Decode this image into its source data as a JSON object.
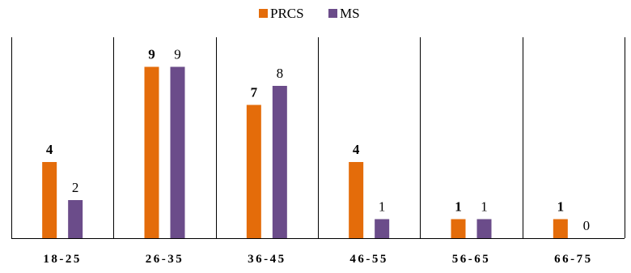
{
  "chart_data": {
    "type": "bar",
    "title": "",
    "xlabel": "",
    "ylabel": "",
    "categories": [
      "18-25",
      "26-35",
      "36-45",
      "46-55",
      "56-65",
      "66-75"
    ],
    "ylim": [
      0,
      10
    ],
    "grid": false,
    "legend_position": "top",
    "series": [
      {
        "name": "PRCS",
        "color": "#E46C0A",
        "label_bold": true,
        "values": [
          4,
          9,
          7,
          4,
          1,
          1
        ]
      },
      {
        "name": "MS",
        "color": "#6B4C8A",
        "label_bold": false,
        "values": [
          2,
          9,
          8,
          1,
          1,
          0
        ]
      }
    ]
  }
}
